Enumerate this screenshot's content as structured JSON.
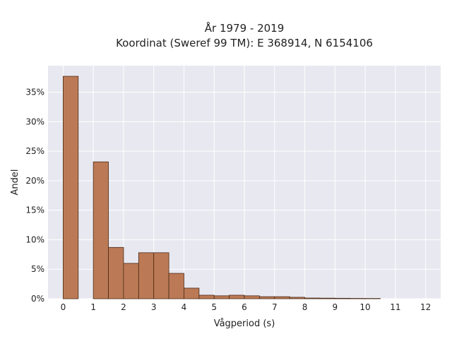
{
  "chart_data": {
    "type": "bar",
    "title_line1": "År 1979 - 2019",
    "title_line2": "Koordinat (Sweref 99 TM): E 368914, N 6154106",
    "xlabel": "Vågperiod (s)",
    "ylabel": "Andel",
    "xlim": [
      -0.5,
      12.5
    ],
    "ylim": [
      0,
      39.5
    ],
    "x_ticks": [
      0,
      1,
      2,
      3,
      4,
      5,
      6,
      7,
      8,
      9,
      10,
      11,
      12
    ],
    "y_ticks": [
      0,
      5,
      10,
      15,
      20,
      25,
      30,
      35
    ],
    "y_tick_labels": [
      "0%",
      "5%",
      "10%",
      "15%",
      "20%",
      "25%",
      "30%",
      "35%"
    ],
    "bin_width": 0.5,
    "bins": [
      {
        "x0": 0.0,
        "value": 37.7
      },
      {
        "x0": 0.5,
        "value": 0.0
      },
      {
        "x0": 1.0,
        "value": 23.2
      },
      {
        "x0": 1.5,
        "value": 8.7
      },
      {
        "x0": 2.0,
        "value": 6.0
      },
      {
        "x0": 2.5,
        "value": 7.8
      },
      {
        "x0": 3.0,
        "value": 7.8
      },
      {
        "x0": 3.5,
        "value": 4.3
      },
      {
        "x0": 4.0,
        "value": 1.8
      },
      {
        "x0": 4.5,
        "value": 0.6
      },
      {
        "x0": 5.0,
        "value": 0.5
      },
      {
        "x0": 5.5,
        "value": 0.6
      },
      {
        "x0": 6.0,
        "value": 0.5
      },
      {
        "x0": 6.5,
        "value": 0.35
      },
      {
        "x0": 7.0,
        "value": 0.35
      },
      {
        "x0": 7.5,
        "value": 0.25
      },
      {
        "x0": 8.0,
        "value": 0.12
      },
      {
        "x0": 8.5,
        "value": 0.1
      },
      {
        "x0": 9.0,
        "value": 0.08
      },
      {
        "x0": 9.5,
        "value": 0.06
      },
      {
        "x0": 10.0,
        "value": 0.05
      }
    ],
    "grid": true,
    "legend": "none",
    "colors": {
      "bar_fill": "#bb7a55",
      "bar_stroke": "#4a2a18",
      "plot_bg": "#e8e8f0",
      "grid": "#ffffff"
    }
  }
}
